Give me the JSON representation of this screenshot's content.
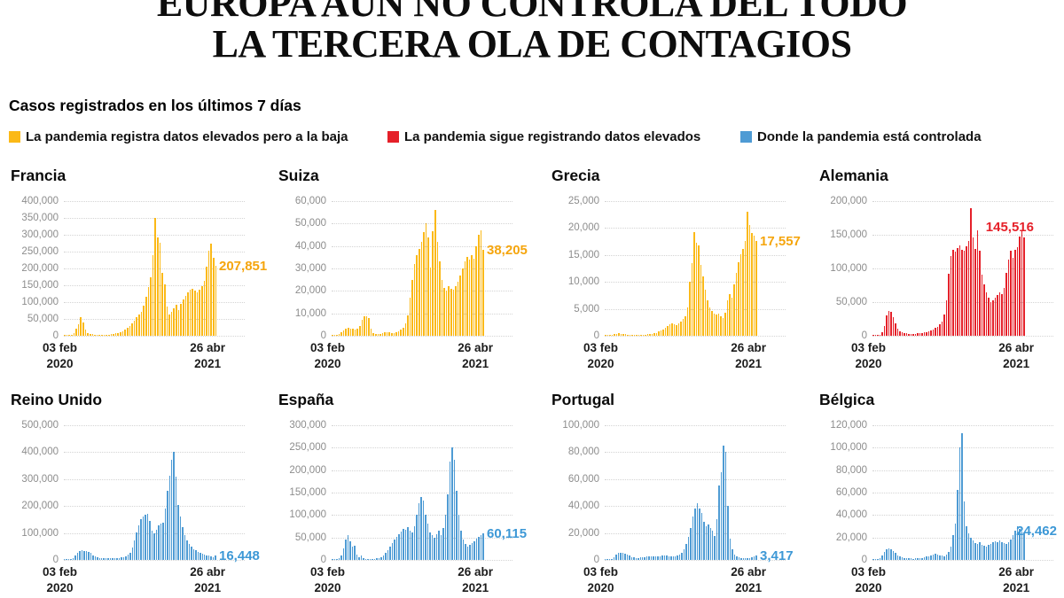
{
  "title": {
    "line1": "EUROPA AÚN NO CONTROLA DEL TODO",
    "line2": "LA TERCERA OLA DE CONTAGIOS"
  },
  "subtitle": "Casos registrados en los últimos 7 días",
  "legend": [
    {
      "color_key": "yellow",
      "label": "La pandemia registra datos elevados pero a la baja"
    },
    {
      "color_key": "red",
      "label": "La pandemia sigue registrando datos elevados"
    },
    {
      "color_key": "blue",
      "label": "Donde la pandemia está controlada"
    }
  ],
  "colors": {
    "yellow": "#FBB917",
    "yellow_label": "#F5A50D",
    "red": "#E52029",
    "red_label": "#E52029",
    "blue": "#4E9BD4",
    "blue_label": "#3D98D6",
    "grid": "#D4D4D4",
    "tick_text": "#8D8D8D",
    "text": "#111111"
  },
  "chart_data": {
    "type": "bar",
    "x_axis": {
      "start": [
        "03 feb",
        "2020"
      ],
      "end": [
        "26 abr",
        "2021"
      ]
    },
    "grid": "dotted horizontal",
    "charts": [
      {
        "name": "Francia",
        "color": "yellow",
        "last_value": 207851,
        "last_value_label": "207,851",
        "ymax": 400000,
        "ystep": 50000,
        "label_mode": "right",
        "yticks": [
          "400,000",
          "350,000",
          "300,000",
          "250,000",
          "200,000",
          "150,000",
          "100,000",
          "50,000",
          "0"
        ],
        "values": [
          200,
          400,
          900,
          2000,
          8000,
          20000,
          35000,
          55000,
          40000,
          18000,
          8000,
          5000,
          4200,
          3600,
          3200,
          3000,
          2800,
          3000,
          3200,
          3600,
          4200,
          5200,
          6800,
          8800,
          11000,
          14000,
          18000,
          24000,
          30000,
          38000,
          46000,
          54000,
          62000,
          72000,
          90000,
          115000,
          145000,
          175000,
          240000,
          350000,
          292000,
          276000,
          186000,
          152000,
          88000,
          62000,
          70000,
          82000,
          92000,
          76000,
          95000,
          108000,
          118000,
          128000,
          136000,
          140000,
          134000,
          128000,
          138000,
          148000,
          162000,
          205000,
          252000,
          275000,
          232000,
          207851
        ]
      },
      {
        "name": "Suiza",
        "color": "yellow",
        "last_value": 38205,
        "last_value_label": "38,205",
        "ymax": 60000,
        "ystep": 10000,
        "label_mode": "right",
        "yticks": [
          "60,000",
          "50,000",
          "40,000",
          "30,000",
          "20,000",
          "10,000",
          "0"
        ],
        "values": [
          60,
          120,
          300,
          800,
          1500,
          2400,
          3100,
          3400,
          3300,
          3100,
          2900,
          3100,
          4500,
          7000,
          8500,
          8800,
          8000,
          3000,
          1300,
          950,
          850,
          950,
          1100,
          1400,
          1600,
          1500,
          1350,
          1250,
          1500,
          2000,
          2600,
          3600,
          5600,
          9000,
          17000,
          25000,
          32000,
          36000,
          38500,
          42000,
          46000,
          50000,
          44000,
          30500,
          46500,
          56000,
          42000,
          33000,
          25000,
          21500,
          20000,
          22000,
          21000,
          20500,
          22000,
          24000,
          27000,
          30000,
          33000,
          35000,
          34000,
          36000,
          34500,
          40000,
          45000,
          47000,
          38205
        ]
      },
      {
        "name": "Grecia",
        "color": "yellow",
        "last_value": 17557,
        "last_value_label": "17,557",
        "ymax": 25000,
        "ystep": 5000,
        "label_mode": "right",
        "yticks": [
          "25,000",
          "20,000",
          "15,000",
          "10,000",
          "5,000",
          "0"
        ],
        "values": [
          25,
          35,
          60,
          130,
          260,
          360,
          420,
          380,
          300,
          250,
          210,
          180,
          155,
          140,
          135,
          145,
          160,
          185,
          210,
          260,
          320,
          380,
          450,
          550,
          750,
          950,
          1200,
          1500,
          1800,
          2100,
          2300,
          2150,
          2050,
          2350,
          2650,
          3100,
          3600,
          5200,
          10000,
          13500,
          19200,
          17200,
          16800,
          13200,
          11000,
          8600,
          6600,
          5300,
          4600,
          4100,
          3900,
          4100,
          3650,
          3250,
          4300,
          6600,
          7700,
          7100,
          9600,
          11600,
          13600,
          15200,
          16200,
          17600,
          23000,
          20600,
          19100,
          18600,
          17557
        ]
      },
      {
        "name": "Alemania",
        "color": "red",
        "last_value": 145516,
        "last_value_label": "145,516",
        "ymax": 200000,
        "ystep": 50000,
        "label_mode": "col4-above",
        "yticks": [
          "200,000",
          "150,000",
          "100,000",
          "50,000",
          "0"
        ],
        "values": [
          120,
          250,
          600,
          1600,
          5000,
          15000,
          30000,
          37000,
          35000,
          28000,
          18000,
          10500,
          7000,
          5200,
          4200,
          3600,
          3200,
          3000,
          2800,
          3100,
          3400,
          3800,
          4200,
          4700,
          5300,
          6300,
          7700,
          9300,
          11300,
          13600,
          16600,
          21600,
          31000,
          52000,
          92000,
          118000,
          128000,
          125000,
          130000,
          134000,
          128000,
          126000,
          133000,
          141000,
          190000,
          146000,
          129000,
          156000,
          126000,
          91000,
          76000,
          64000,
          56000,
          50000,
          52000,
          56000,
          61000,
          65000,
          62000,
          71000,
          93000,
          113000,
          126000,
          116000,
          127000,
          132000,
          147000,
          156000,
          145516
        ]
      },
      {
        "name": "Reino Unido",
        "color": "blue",
        "last_value": 16448,
        "last_value_label": "16,448",
        "ymax": 500000,
        "ystep": 100000,
        "label_mode": "right",
        "yticks": [
          "500,000",
          "400,000",
          "300,000",
          "200,000",
          "100,000",
          "0"
        ],
        "values": [
          150,
          350,
          900,
          2200,
          6500,
          16000,
          26000,
          32000,
          35000,
          34000,
          33000,
          30000,
          25000,
          18000,
          12500,
          9500,
          7800,
          6800,
          6200,
          5800,
          5400,
          5700,
          6200,
          6700,
          7200,
          7800,
          8800,
          10500,
          13500,
          18500,
          28000,
          46000,
          72000,
          102000,
          128000,
          150000,
          160000,
          168000,
          172000,
          145000,
          108000,
          100000,
          112000,
          128000,
          136000,
          139000,
          190000,
          255000,
          312000,
          372000,
          400000,
          310000,
          205000,
          160000,
          121000,
          93000,
          73000,
          59000,
          48000,
          41000,
          35000,
          30500,
          27000,
          24000,
          21000,
          18000,
          15000,
          12500,
          10500,
          16448
        ]
      },
      {
        "name": "España",
        "color": "blue",
        "last_value": 60115,
        "last_value_label": "60,115",
        "ymax": 300000,
        "ystep": 50000,
        "label_mode": "right",
        "yticks": [
          "300,000",
          "250,000",
          "200,000",
          "150,000",
          "100,000",
          "50,000",
          "0"
        ],
        "values": [
          150,
          350,
          1000,
          3000,
          10000,
          25000,
          45000,
          55000,
          42000,
          30000,
          32000,
          12000,
          6000,
          9500,
          4000,
          2600,
          2300,
          2100,
          2300,
          2600,
          3100,
          4100,
          6100,
          10000,
          16000,
          22000,
          30000,
          38000,
          45000,
          52000,
          58000,
          64000,
          70000,
          68000,
          73000,
          66000,
          61000,
          76000,
          100000,
          126000,
          140000,
          133000,
          100000,
          80000,
          62000,
          55000,
          50000,
          57000,
          66000,
          55000,
          72000,
          100000,
          146000,
          220000,
          250000,
          224000,
          154000,
          100000,
          66000,
          46000,
          36000,
          30000,
          33000,
          37000,
          42000,
          47000,
          52000,
          56000,
          60115
        ]
      },
      {
        "name": "Portugal",
        "color": "blue",
        "last_value": 3417,
        "last_value_label": "3,417",
        "ymax": 100000,
        "ystep": 20000,
        "label_mode": "right",
        "yticks": [
          "100,000",
          "80,000",
          "60,000",
          "40,000",
          "20,000",
          "0"
        ],
        "values": [
          60,
          120,
          350,
          900,
          2200,
          4200,
          5200,
          5500,
          5200,
          4800,
          4000,
          3000,
          2200,
          1800,
          1500,
          1600,
          1800,
          2000,
          2200,
          2400,
          2600,
          2800,
          2600,
          2400,
          2600,
          2800,
          3000,
          3200,
          3000,
          2800,
          2600,
          2500,
          2800,
          3200,
          4000,
          5500,
          8000,
          12000,
          17000,
          24000,
          32000,
          38000,
          42000,
          38000,
          35000,
          28000,
          25000,
          26000,
          24000,
          22000,
          18000,
          30000,
          55000,
          65000,
          85000,
          80000,
          40000,
          16000,
          8000,
          4000,
          2500,
          1800,
          1500,
          1300,
          1200,
          1300,
          1500,
          2000,
          2800,
          3417
        ]
      },
      {
        "name": "Bélgica",
        "color": "blue",
        "last_value": 24462,
        "last_value_label": "24,462",
        "ymax": 120000,
        "ystep": 20000,
        "label_mode": "col4",
        "yticks": [
          "120,000",
          "100,000",
          "80,000",
          "60,000",
          "40,000",
          "20,000",
          "0"
        ],
        "values": [
          60,
          160,
          450,
          1300,
          3600,
          7200,
          9600,
          10000,
          9500,
          8000,
          6000,
          4000,
          2800,
          2200,
          1800,
          1500,
          1300,
          1200,
          1100,
          1200,
          1300,
          1500,
          1800,
          2200,
          2800,
          3500,
          4200,
          5000,
          5500,
          5000,
          4200,
          3600,
          3200,
          4500,
          7000,
          12000,
          22000,
          32000,
          62000,
          100000,
          113000,
          52000,
          30000,
          24000,
          20000,
          17000,
          15000,
          14500,
          16000,
          13500,
          12500,
          12000,
          13500,
          14500,
          15500,
          16500,
          15500,
          17000,
          16000,
          15000,
          14000,
          16000,
          18500,
          22000,
          26000,
          30000,
          28000,
          25000,
          24462
        ]
      }
    ]
  }
}
